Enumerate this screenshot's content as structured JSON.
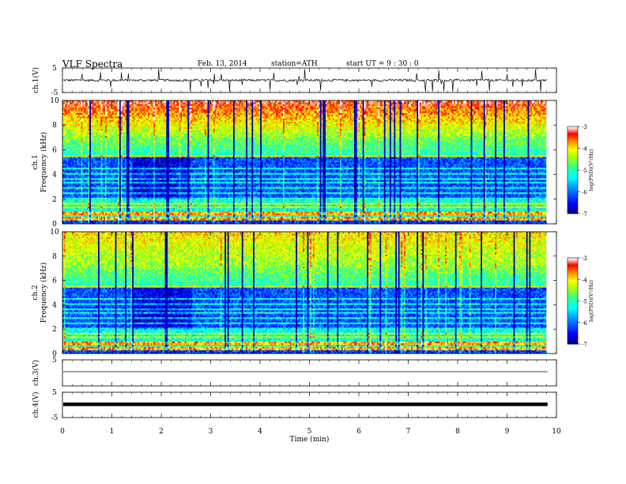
{
  "header": {
    "title": "VLF  Spectra",
    "date": "Feb. 13, 2014",
    "station": "station=ATH",
    "start_ut": "start  UT  =   9  : 30 : 0"
  },
  "chart_data": [
    {
      "type": "line",
      "panel": "ch1-waveform",
      "ylabel": "ch.1(V)",
      "ylim": [
        -5,
        5
      ],
      "yticks": [
        "5",
        "-5"
      ],
      "description_visible": "dense voltage waveform near 0 V with frequent spikes"
    },
    {
      "type": "heatmap",
      "panel": "ch1-spectrogram",
      "ylabel": [
        "ch.1",
        "Frequency  (kHz)"
      ],
      "ylim": [
        0,
        10
      ],
      "yticks": [
        "0",
        "2",
        "4",
        "6",
        "8",
        "10"
      ],
      "colorbar": {
        "label": "log(PSD)(V²/Hz)",
        "ticks": [
          "-3",
          "-4",
          "-5",
          "-6",
          "-7"
        ],
        "range": [
          -7,
          -3
        ],
        "colors": [
          "#000080",
          "#0000ff",
          "#00a0ff",
          "#00ffff",
          "#40ff80",
          "#c0ff00",
          "#ffff00",
          "#ff8000",
          "#ff0000",
          "#ffb0b0",
          "#ffffff"
        ]
      }
    },
    {
      "type": "heatmap",
      "panel": "ch2-spectrogram",
      "ylabel": [
        "ch.2",
        "Frequency  (kHz)"
      ],
      "ylim": [
        0,
        10
      ],
      "yticks": [
        "0",
        "2",
        "4",
        "6",
        "8",
        "10"
      ],
      "colorbar": {
        "label": "log(PSD)(V²/Hz)",
        "ticks": [
          "-3",
          "-4",
          "-5",
          "-6",
          "-7"
        ],
        "range": [
          -7,
          -3
        ]
      }
    },
    {
      "type": "line",
      "panel": "ch3-waveform",
      "ylabel": "ch.3(V)",
      "ylim": [
        -5,
        5
      ],
      "yticks": [
        "5"
      ]
    },
    {
      "type": "line",
      "panel": "ch4-waveform",
      "ylabel": "ch.4(V)",
      "ylim": [
        -5,
        5
      ],
      "yticks": [
        "5",
        "-5"
      ]
    }
  ],
  "xaxis": {
    "label": "Time  (min)",
    "xlim": [
      0,
      10
    ],
    "ticks": [
      "0",
      "1",
      "2",
      "3",
      "4",
      "5",
      "6",
      "7",
      "8",
      "9",
      "10"
    ],
    "data_end": 9.82
  }
}
